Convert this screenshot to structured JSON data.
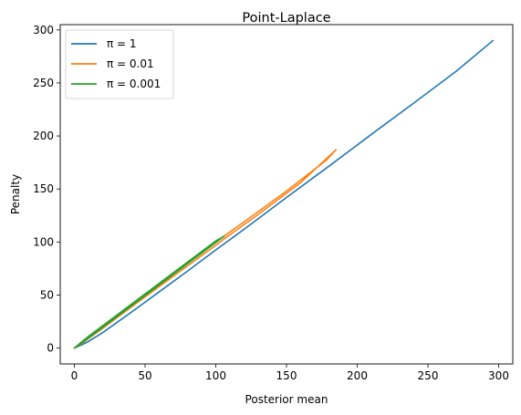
{
  "chart_data": {
    "type": "line",
    "title": "Point-Laplace",
    "xlabel": "Posterior mean",
    "ylabel": "Penalty",
    "xlim": [
      -10,
      310
    ],
    "ylim": [
      -15,
      305
    ],
    "xticks": [
      0,
      50,
      100,
      150,
      200,
      250,
      300
    ],
    "yticks": [
      0,
      50,
      100,
      150,
      200,
      250,
      300
    ],
    "grid": false,
    "legend_position": "top-left",
    "series": [
      {
        "name": "π = 1",
        "color": "#1f77b4",
        "x": [
          0,
          1,
          3,
          6,
          10,
          20,
          40,
          60,
          80,
          100,
          120,
          150,
          180,
          210,
          240,
          270,
          296
        ],
        "y": [
          0,
          0.5,
          1.8,
          3.5,
          6.2,
          14.5,
          33.5,
          53,
          72.5,
          92.5,
          112,
          142,
          171.5,
          201.5,
          231,
          261,
          290
        ]
      },
      {
        "name": "π = 0.01",
        "color": "#ff7f0e",
        "x": [
          0,
          2,
          5,
          10,
          20,
          40,
          60,
          80,
          100,
          106,
          130,
          160,
          185,
          178,
          150,
          120,
          100,
          80,
          60,
          40,
          20,
          10,
          5,
          2,
          0
        ],
        "y": [
          0,
          1.5,
          4,
          9,
          18.5,
          38.5,
          58,
          77.5,
          97,
          103,
          126,
          156,
          187,
          177,
          148,
          119,
          100,
          80.5,
          60.5,
          40.5,
          20,
          10,
          5,
          2,
          0
        ]
      },
      {
        "name": "π = 0.001",
        "color": "#2ca02c",
        "x": [
          0,
          2,
          5,
          10,
          20,
          40,
          60,
          80,
          100,
          106,
          100,
          80,
          60,
          40,
          20,
          10,
          5,
          2,
          0
        ],
        "y": [
          0,
          1.5,
          4.5,
          9.5,
          19.5,
          39.5,
          59.5,
          79.5,
          99.5,
          105.5,
          101,
          81,
          61,
          41,
          21,
          11,
          5.5,
          2.2,
          0
        ]
      }
    ]
  }
}
